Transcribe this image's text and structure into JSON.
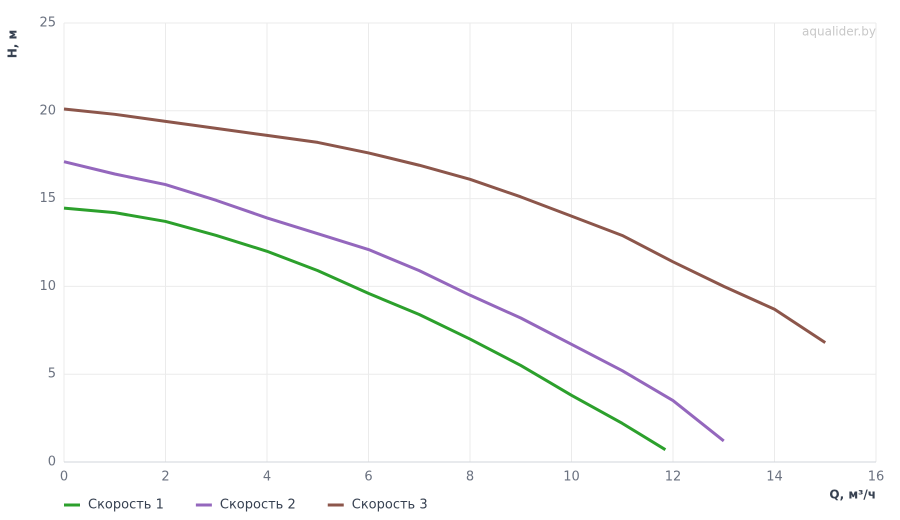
{
  "chart_data": {
    "type": "line",
    "watermark": "aqualider.by",
    "y_label": "H, м",
    "x_label": "Q, м³/ч",
    "xlim": [
      0,
      16
    ],
    "xticks": [
      0,
      2,
      4,
      6,
      8,
      10,
      12,
      14,
      16
    ],
    "ylim": [
      0,
      25
    ],
    "yticks": [
      0,
      5,
      10,
      15,
      20,
      25
    ],
    "grid": true,
    "legend": "bottom-left",
    "series": [
      {
        "name": "Скорость 1",
        "color": "#2ca02c",
        "x": [
          0,
          1,
          2,
          3,
          4,
          5,
          6,
          7,
          8,
          9,
          10,
          11,
          11.85
        ],
        "values": [
          14.46,
          14.2,
          13.7,
          12.9,
          12.0,
          10.9,
          9.6,
          8.4,
          7.0,
          5.5,
          3.8,
          2.2,
          0.7
        ]
      },
      {
        "name": "Скорость 2",
        "color": "#9467bd",
        "x": [
          0,
          1,
          2,
          3,
          4,
          5,
          6,
          7,
          8,
          9,
          10,
          11,
          12,
          13
        ],
        "values": [
          17.1,
          16.4,
          15.8,
          14.9,
          13.9,
          13.0,
          12.1,
          10.9,
          9.5,
          8.2,
          6.7,
          5.2,
          3.5,
          1.2
        ]
      },
      {
        "name": "Скорость 3",
        "color": "#8c564b",
        "x": [
          0,
          1,
          2,
          3,
          4,
          5,
          6,
          7,
          8,
          9,
          10,
          11,
          12,
          13,
          14,
          15
        ],
        "values": [
          20.1,
          19.8,
          19.4,
          19.0,
          18.6,
          18.2,
          17.6,
          16.9,
          16.1,
          15.1,
          14.0,
          12.9,
          11.4,
          10.0,
          8.7,
          6.8
        ]
      }
    ]
  }
}
